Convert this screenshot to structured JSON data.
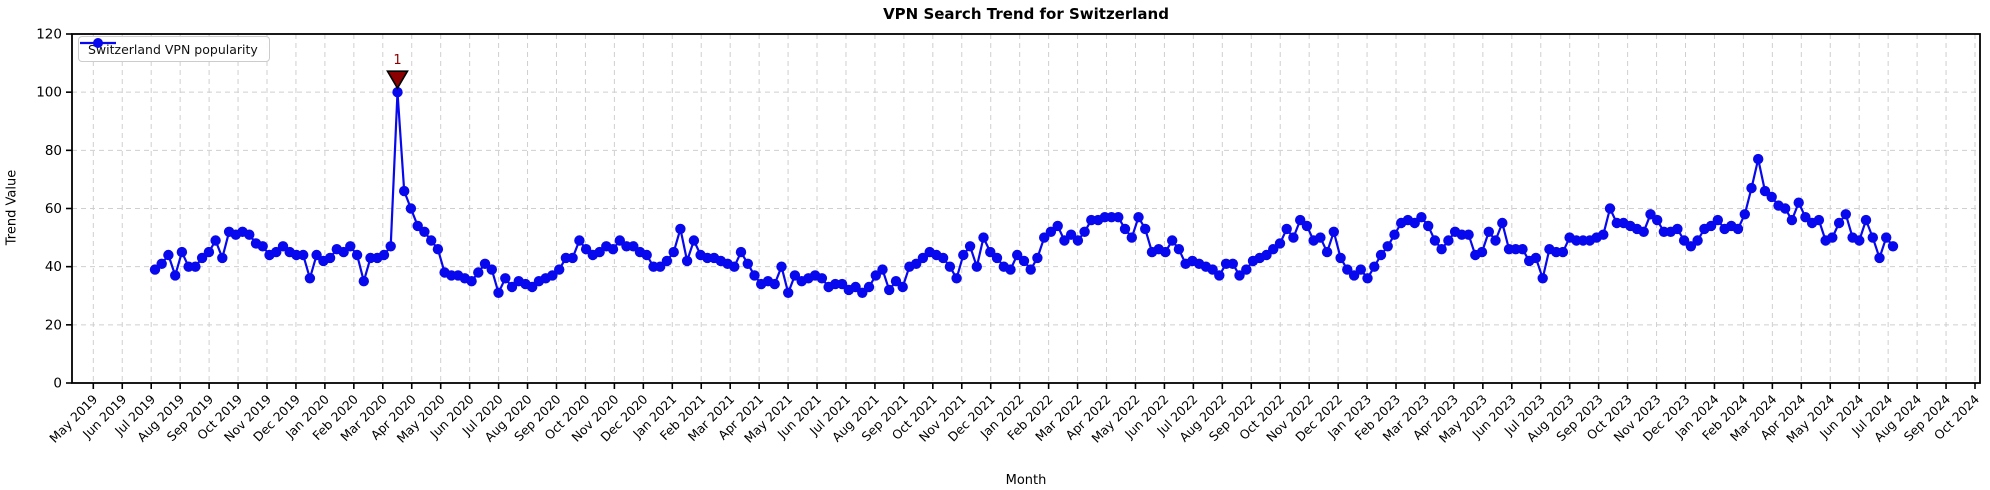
{
  "title": "VPN Search Trend for Switzerland",
  "x_axis_label": "Month",
  "y_axis_label": "Trend Value",
  "legend": {
    "series_label": "Switzerland VPN popularity"
  },
  "colors": {
    "line": "#0808ee",
    "marker": "#0808ee",
    "annotation": "#8b0000",
    "grid": "#cfcfcf",
    "axis": "#000000",
    "background": "#ffffff"
  },
  "annotation": {
    "label": "1",
    "marker": "triangle-down"
  },
  "chart_data": {
    "type": "line",
    "title": "VPN Search Trend for Switzerland",
    "xlabel": "Month",
    "ylabel": "Trend Value",
    "ylim": [
      0,
      120
    ],
    "yticks": [
      0,
      20,
      40,
      60,
      80,
      100,
      120
    ],
    "grid": true,
    "legend_position": "upper left",
    "x_tick_labels": [
      "May 2019",
      "Jun 2019",
      "Jul 2019",
      "Aug 2019",
      "Sep 2019",
      "Oct 2019",
      "Nov 2019",
      "Dec 2019",
      "Jan 2020",
      "Feb 2020",
      "Mar 2020",
      "Apr 2020",
      "May 2020",
      "Jun 2020",
      "Jul 2020",
      "Aug 2020",
      "Sep 2020",
      "Oct 2020",
      "Nov 2020",
      "Dec 2020",
      "Jan 2021",
      "Feb 2021",
      "Mar 2021",
      "Apr 2021",
      "May 2021",
      "Jun 2021",
      "Jul 2021",
      "Aug 2021",
      "Sep 2021",
      "Oct 2021",
      "Nov 2021",
      "Dec 2021",
      "Jan 2022",
      "Feb 2022",
      "Mar 2022",
      "Apr 2022",
      "May 2022",
      "Jun 2022",
      "Jul 2022",
      "Aug 2022",
      "Sep 2022",
      "Oct 2022",
      "Nov 2022",
      "Dec 2022",
      "Jan 2023",
      "Feb 2023",
      "Mar 2023",
      "Apr 2023",
      "May 2023",
      "Jun 2023",
      "Jul 2023",
      "Aug 2023",
      "Sep 2023",
      "Oct 2023",
      "Nov 2023",
      "Dec 2023",
      "Jan 2024",
      "Feb 2024",
      "Mar 2024",
      "Apr 2024",
      "May 2024",
      "Jun 2024",
      "Jul 2024",
      "Aug 2024",
      "Sep 2024",
      "Oct 2024"
    ],
    "series": [
      {
        "name": "Switzerland VPN popularity",
        "color": "#0808ee",
        "marker": "circle",
        "frequency": "weekly",
        "start_month_offset": 2.13,
        "step_months": 0.2327,
        "values": [
          39,
          41,
          44,
          37,
          45,
          40,
          40,
          43,
          45,
          49,
          43,
          52,
          51,
          52,
          51,
          48,
          47,
          44,
          45,
          47,
          45,
          44,
          44,
          36,
          44,
          42,
          43,
          46,
          45,
          47,
          44,
          35,
          43,
          43,
          44,
          47,
          100,
          66,
          60,
          54,
          52,
          49,
          46,
          38,
          37,
          37,
          36,
          35,
          38,
          41,
          39,
          31,
          36,
          33,
          35,
          34,
          33,
          35,
          36,
          37,
          39,
          43,
          43,
          49,
          46,
          44,
          45,
          47,
          46,
          49,
          47,
          47,
          45,
          44,
          40,
          40,
          42,
          45,
          53,
          42,
          49,
          44,
          43,
          43,
          42,
          41,
          40,
          45,
          41,
          37,
          34,
          35,
          34,
          40,
          31,
          37,
          35,
          36,
          37,
          36,
          33,
          34,
          34,
          32,
          33,
          31,
          33,
          37,
          39,
          32,
          35,
          33,
          40,
          41,
          43,
          45,
          44,
          43,
          40,
          36,
          44,
          47,
          40,
          50,
          45,
          43,
          40,
          39,
          44,
          42,
          39,
          43,
          50,
          52,
          54,
          49,
          51,
          49,
          52,
          56,
          56,
          57,
          57,
          57,
          53,
          50,
          57,
          53,
          45,
          46,
          45,
          49,
          46,
          41,
          42,
          41,
          40,
          39,
          37,
          41,
          41,
          37,
          39,
          42,
          43,
          44,
          46,
          48,
          53,
          50,
          56,
          54,
          49,
          50,
          45,
          52,
          43,
          39,
          37,
          39,
          36,
          40,
          44,
          47,
          51,
          55,
          56,
          55,
          57,
          54,
          49,
          46,
          49,
          52,
          51,
          51,
          44,
          45,
          52,
          49,
          55,
          46,
          46,
          46,
          42,
          43,
          36,
          46,
          45,
          45,
          50,
          49,
          49,
          49,
          50,
          51,
          60,
          55,
          55,
          54,
          53,
          52,
          58,
          56,
          52,
          52,
          53,
          49,
          47,
          49,
          53,
          54,
          56,
          53,
          54,
          53,
          58,
          67,
          77,
          66,
          64,
          61,
          60,
          56,
          62,
          57,
          55,
          56,
          49,
          50,
          55,
          58,
          50,
          49,
          56,
          50,
          43,
          50,
          47
        ]
      }
    ],
    "annotations": [
      {
        "label": "1",
        "week_index": 36,
        "value": 100,
        "marker": "triangle-down",
        "color": "#8b0000"
      }
    ]
  }
}
